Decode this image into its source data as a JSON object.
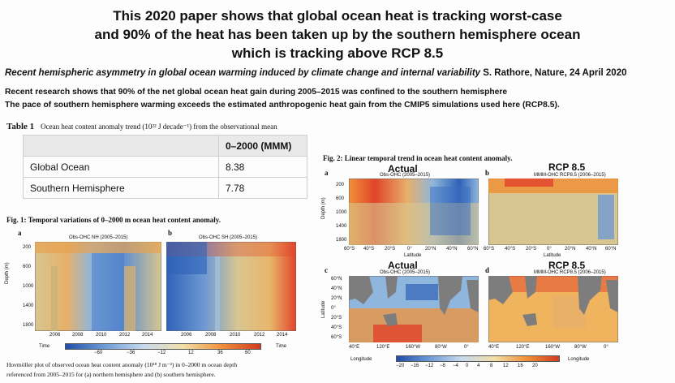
{
  "headline": {
    "line1": "This 2020 paper shows that global ocean heat is tracking worst-case",
    "line2": "and 90% of the heat has been taken up by the southern hemisphere ocean",
    "line3": "which is tracking above RCP 8.5"
  },
  "subtitle": {
    "paper_title": "Recent hemispheric asymmetry in global ocean warming induced by climate change and internal variability",
    "author_source": " S. Rathore, Nature, 24 April 2020"
  },
  "summary": {
    "line1": "Recent research shows that 90% of the net global ocean heat gain during 2005–2015 was confined to the southern hemisphere",
    "line2": "The pace of southern hemisphere warming exceeds the estimated anthropogenic heat gain from the CMIP5 simulations used here (RCP8.5)."
  },
  "table1": {
    "label": "Table 1",
    "caption": "Ocean heat content anomaly trend (10²² J decade⁻¹) from the observational mean",
    "column_header": "0–2000 (MMM)",
    "rows": [
      {
        "region": "Global Ocean",
        "value": "8.38"
      },
      {
        "region": "Southern Hemisphere",
        "value": "7.78"
      }
    ]
  },
  "fig1": {
    "title": "Fig. 1: Temporal variations of 0–2000 m ocean heat content anomaly.",
    "panel_a_letter": "a",
    "panel_b_letter": "b",
    "panel_a_title": "Obs-OHC NH (2005–2015)",
    "panel_b_title": "Obs-OHC SH (2005–2015)",
    "ylabel": "Depth (m)",
    "yticks": [
      "200",
      "600",
      "1000",
      "1400",
      "1800"
    ],
    "xticks": [
      "2006",
      "2008",
      "2010",
      "2012",
      "2014"
    ],
    "time_label": "Time",
    "colorbar_ticks": [
      "−60",
      "−36",
      "−12",
      "12",
      "36",
      "60"
    ],
    "caption_line1": "Hovmöller plot of observed ocean heat content anomaly (10¹⁸ J m⁻²) in 0–2000 m ocean depth",
    "caption_line2": "referenced from 2005–2015 for (a) northern hemisphere and (b) southern hemisphere."
  },
  "fig2": {
    "title": "Fig. 2: Linear temporal trend in ocean heat content anomaly.",
    "panel_a": {
      "letter": "a",
      "label": "Actual",
      "title": "Obs-OHC (2005–2015)"
    },
    "panel_b": {
      "letter": "b",
      "label": "RCP 8.5",
      "title": "MMM-OHC RCP8.5 (2006–2015)"
    },
    "panel_c": {
      "letter": "c",
      "label": "Actual",
      "title": "Obs-OHC (2005–2015)"
    },
    "panel_d": {
      "letter": "d",
      "label": "RCP 8.5",
      "title": "MMM-OHC RCP8.5 (2006–2015)"
    },
    "depth_label": "Depth (m)",
    "depth_ticks": [
      "200",
      "600",
      "1000",
      "1400",
      "1800"
    ],
    "lat_xticks": [
      "60°S",
      "40°S",
      "20°S",
      "0°",
      "20°N",
      "40°N",
      "60°N"
    ],
    "lat_xlabel": "Latitude",
    "lat_label": "Latitude",
    "map_yticks": [
      "60°N",
      "40°N",
      "20°N",
      "0°",
      "20°S",
      "40°S",
      "60°S"
    ],
    "map_xticks": [
      "40°E",
      "120°E",
      "160°W",
      "80°W",
      "0°"
    ],
    "longitude_label": "Longitude",
    "colorbar_ticks": [
      "−20",
      "−16",
      "−12",
      "−8",
      "−4",
      "0",
      "4",
      "8",
      "12",
      "16",
      "20"
    ]
  },
  "colors": {
    "deep_blue": "#2f62b8",
    "light_blue": "#8fb6dc",
    "tan": "#d8c690",
    "orange": "#f0913a",
    "red": "#e0442a",
    "land": "#7d7d7d"
  }
}
